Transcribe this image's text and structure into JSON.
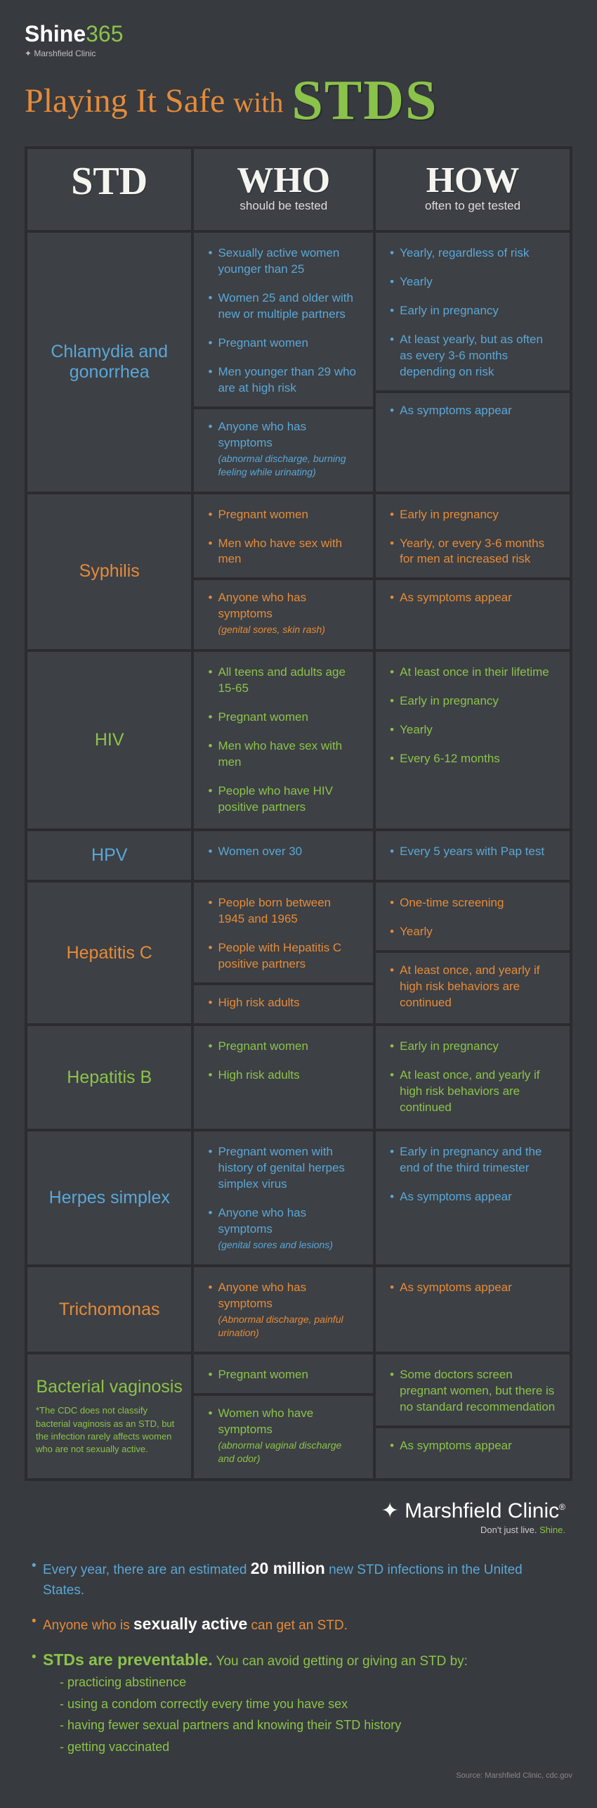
{
  "logo": {
    "main": "Shine365",
    "sub": "Marshfield Clinic"
  },
  "title": {
    "pre": "Playing It Safe",
    "with": "with",
    "stds": "STDS"
  },
  "headers": {
    "col1": "STD",
    "col2": "WHO",
    "col2_sub": "should be tested",
    "col3": "HOW",
    "col3_sub": "often to get tested"
  },
  "rows": [
    {
      "name": "Chlamydia and gonorrhea",
      "color": "blue",
      "groups": [
        {
          "who": [
            {
              "text": "Sexually active women younger than 25"
            },
            {
              "text": "Women 25 and older with new or multiple partners"
            },
            {
              "text": "Pregnant women"
            },
            {
              "text": "Men younger than 29 who are at high risk"
            }
          ],
          "how": [
            {
              "text": "Yearly, regardless of risk"
            },
            {
              "text": "Yearly"
            },
            {
              "text": "Early in pregnancy"
            },
            {
              "text": "At least yearly, but as often as every 3-6 months depending on risk"
            }
          ]
        },
        {
          "who": [
            {
              "text": "Anyone who has symptoms",
              "paren": "(abnormal discharge, burning feeling while urinating)"
            }
          ],
          "how": [
            {
              "text": "As symptoms appear"
            }
          ]
        }
      ]
    },
    {
      "name": "Syphilis",
      "color": "orange",
      "groups": [
        {
          "who": [
            {
              "text": "Pregnant women"
            },
            {
              "text": "Men who have sex with men"
            }
          ],
          "how": [
            {
              "text": "Early in pregnancy"
            },
            {
              "text": "Yearly, or every 3-6 months for men at increased risk"
            }
          ]
        },
        {
          "who": [
            {
              "text": "Anyone who has symptoms",
              "paren": "(genital sores, skin rash)"
            }
          ],
          "how": [
            {
              "text": "As symptoms appear"
            }
          ]
        }
      ]
    },
    {
      "name": "HIV",
      "color": "green",
      "groups": [
        {
          "who": [
            {
              "text": "All teens and adults age 15-65"
            },
            {
              "text": "Pregnant women"
            },
            {
              "text": "Men who have sex with men"
            },
            {
              "text": "People who have HIV positive partners"
            }
          ],
          "how": [
            {
              "text": "At least once in their lifetime"
            },
            {
              "text": "Early in pregnancy"
            },
            {
              "text": "Yearly"
            },
            {
              "text": "Every 6-12 months"
            }
          ]
        }
      ]
    },
    {
      "name": "HPV",
      "color": "blue",
      "groups": [
        {
          "who": [
            {
              "text": "Women over 30"
            }
          ],
          "how": [
            {
              "text": "Every 5 years with Pap test"
            }
          ]
        }
      ]
    },
    {
      "name": "Hepatitis C",
      "color": "orange",
      "groups": [
        {
          "who": [
            {
              "text": "People born between 1945 and 1965"
            },
            {
              "text": "People with Hepatitis C positive partners"
            }
          ],
          "how": [
            {
              "text": "One-time screening"
            },
            {
              "text": "Yearly"
            }
          ]
        },
        {
          "who": [
            {
              "text": "High risk adults"
            }
          ],
          "how": [
            {
              "text": "At least once, and yearly if high risk behaviors are continued"
            }
          ]
        }
      ]
    },
    {
      "name": "Hepatitis B",
      "color": "green",
      "groups": [
        {
          "who": [
            {
              "text": "Pregnant women"
            },
            {
              "text": "High risk adults"
            }
          ],
          "how": [
            {
              "text": "Early in pregnancy"
            },
            {
              "text": "At least once, and yearly if high risk behaviors are continued"
            }
          ]
        }
      ]
    },
    {
      "name": "Herpes simplex",
      "color": "blue",
      "groups": [
        {
          "who": [
            {
              "text": "Pregnant women with history of genital herpes simplex virus"
            },
            {
              "text": "Anyone who has symptoms",
              "paren": "(genital sores and lesions)"
            }
          ],
          "how": [
            {
              "text": "Early in pregnancy and the end of the third trimester"
            },
            {
              "text": "As symptoms appear"
            }
          ]
        }
      ]
    },
    {
      "name": "Trichomonas",
      "color": "orange",
      "groups": [
        {
          "who": [
            {
              "text": "Anyone who has symptoms",
              "paren": "(Abnormal discharge, painful urination)"
            }
          ],
          "how": [
            {
              "text": "As symptoms appear"
            }
          ]
        }
      ]
    },
    {
      "name": "Bacterial vaginosis",
      "color": "green",
      "note": "*The CDC does not classify bacterial vaginosis as an STD, but the infection rarely affects women who are not sexually active.",
      "groups": [
        {
          "who": [
            {
              "text": "Pregnant women"
            }
          ],
          "how": [
            {
              "text": "Some doctors screen pregnant women, but there is no standard recommendation"
            }
          ]
        },
        {
          "who": [
            {
              "text": "Women who have symptoms",
              "paren": "(abnormal vaginal discharge and odor)"
            }
          ],
          "how": [
            {
              "text": "As symptoms appear"
            }
          ]
        }
      ]
    }
  ],
  "footerLogo": {
    "name": "Marshfield Clinic",
    "tag_pre": "Don't just live.",
    "tag_shine": "Shine."
  },
  "facts": {
    "f1_pre": "Every year, there are an estimated",
    "f1_emph": "20 million",
    "f1_post": "new STD infections in the United States.",
    "f2_pre": "Anyone who is",
    "f2_emph": "sexually active",
    "f2_post": "can get an STD.",
    "f3_emph": "STDs are preventable.",
    "f3_post": "You can avoid getting or giving an STD by:",
    "prevent": [
      "practicing abstinence",
      "using a condom correctly every time you have sex",
      "having fewer sexual partners and knowing their STD history",
      "getting vaccinated"
    ]
  },
  "source": "Source: Marshfield Clinic, cdc.gov"
}
